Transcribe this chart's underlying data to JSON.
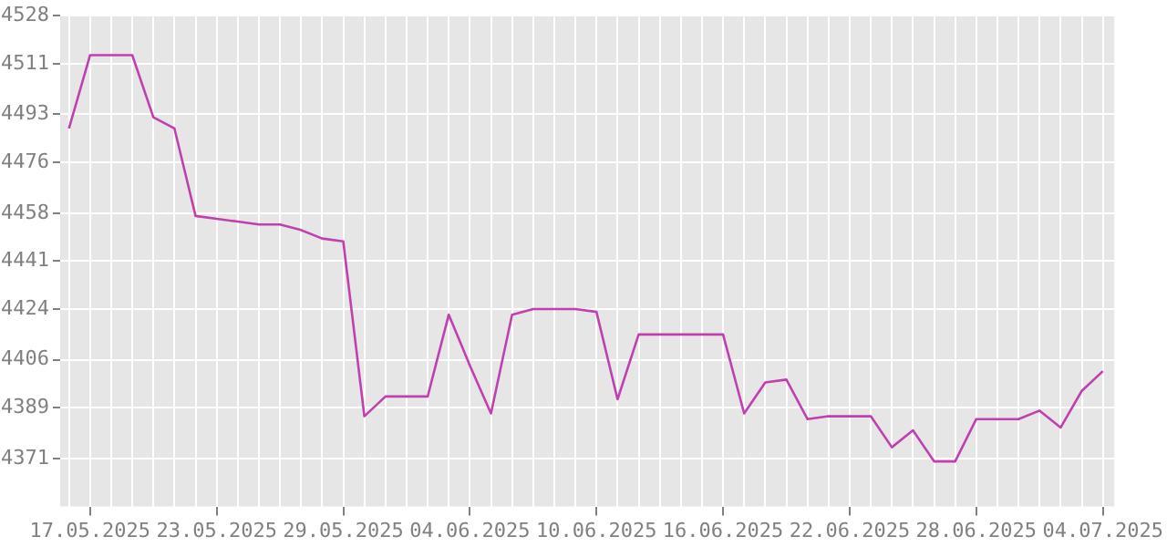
{
  "chart_data": {
    "type": "line",
    "x": [
      "2025-05-16",
      "2025-05-17",
      "2025-05-18",
      "2025-05-19",
      "2025-05-20",
      "2025-05-21",
      "2025-05-22",
      "2025-05-23",
      "2025-05-24",
      "2025-05-25",
      "2025-05-26",
      "2025-05-27",
      "2025-05-28",
      "2025-05-29",
      "2025-05-30",
      "2025-05-31",
      "2025-06-01",
      "2025-06-02",
      "2025-06-03",
      "2025-06-04",
      "2025-06-05",
      "2025-06-06",
      "2025-06-07",
      "2025-06-08",
      "2025-06-09",
      "2025-06-10",
      "2025-06-11",
      "2025-06-12",
      "2025-06-13",
      "2025-06-14",
      "2025-06-15",
      "2025-06-16",
      "2025-06-17",
      "2025-06-18",
      "2025-06-19",
      "2025-06-20",
      "2025-06-21",
      "2025-06-22",
      "2025-06-23",
      "2025-06-24",
      "2025-06-25",
      "2025-06-26",
      "2025-06-27",
      "2025-06-28",
      "2025-06-29",
      "2025-06-30",
      "2025-07-01",
      "2025-07-02",
      "2025-07-03",
      "2025-07-04"
    ],
    "series": [
      {
        "color": "#c040b0",
        "values": [
          4488,
          4514,
          4514,
          4514,
          4492,
          4488,
          4457,
          4456,
          4455,
          4454,
          4454,
          4452,
          4449,
          4448,
          4386,
          4393,
          4393,
          4393,
          4422,
          4404,
          4387,
          4422,
          4424,
          4424,
          4424,
          4423,
          4392,
          4415,
          4415,
          4415,
          4415,
          4415,
          4387,
          4398,
          4399,
          4385,
          4386,
          4386,
          4386,
          4375,
          4381,
          4370,
          4370,
          4385,
          4385,
          4385,
          4388,
          4382,
          4395,
          4402
        ]
      }
    ],
    "xlim": [
      "2025-05-15T14:00",
      "2025-07-04T13:00"
    ],
    "xticks": [
      {
        "value": "2025-05-16",
        "label": null
      },
      {
        "value": "2025-05-17",
        "label": "17.05.2025"
      },
      {
        "value": "2025-05-18",
        "label": null
      },
      {
        "value": "2025-05-19",
        "label": null
      },
      {
        "value": "2025-05-20",
        "label": null
      },
      {
        "value": "2025-05-21",
        "label": null
      },
      {
        "value": "2025-05-22",
        "label": null
      },
      {
        "value": "2025-05-23",
        "label": "23.05.2025"
      },
      {
        "value": "2025-05-24",
        "label": null
      },
      {
        "value": "2025-05-25",
        "label": null
      },
      {
        "value": "2025-05-26",
        "label": null
      },
      {
        "value": "2025-05-27",
        "label": null
      },
      {
        "value": "2025-05-28",
        "label": null
      },
      {
        "value": "2025-05-29",
        "label": "29.05.2025"
      },
      {
        "value": "2025-05-30",
        "label": null
      },
      {
        "value": "2025-05-31",
        "label": null
      },
      {
        "value": "2025-06-01",
        "label": null
      },
      {
        "value": "2025-06-02",
        "label": null
      },
      {
        "value": "2025-06-03",
        "label": null
      },
      {
        "value": "2025-06-04",
        "label": "04.06.2025"
      },
      {
        "value": "2025-06-05",
        "label": null
      },
      {
        "value": "2025-06-06",
        "label": null
      },
      {
        "value": "2025-06-07",
        "label": null
      },
      {
        "value": "2025-06-08",
        "label": null
      },
      {
        "value": "2025-06-09",
        "label": null
      },
      {
        "value": "2025-06-10",
        "label": "10.06.2025"
      },
      {
        "value": "2025-06-11",
        "label": null
      },
      {
        "value": "2025-06-12",
        "label": null
      },
      {
        "value": "2025-06-13",
        "label": null
      },
      {
        "value": "2025-06-14",
        "label": null
      },
      {
        "value": "2025-06-15",
        "label": null
      },
      {
        "value": "2025-06-16",
        "label": "16.06.2025"
      },
      {
        "value": "2025-06-17",
        "label": null
      },
      {
        "value": "2025-06-18",
        "label": null
      },
      {
        "value": "2025-06-19",
        "label": null
      },
      {
        "value": "2025-06-20",
        "label": null
      },
      {
        "value": "2025-06-21",
        "label": null
      },
      {
        "value": "2025-06-22",
        "label": "22.06.2025"
      },
      {
        "value": "2025-06-23",
        "label": null
      },
      {
        "value": "2025-06-24",
        "label": null
      },
      {
        "value": "2025-06-25",
        "label": null
      },
      {
        "value": "2025-06-26",
        "label": null
      },
      {
        "value": "2025-06-27",
        "label": null
      },
      {
        "value": "2025-06-28",
        "label": "28.06.2025"
      },
      {
        "value": "2025-06-29",
        "label": null
      },
      {
        "value": "2025-06-30",
        "label": null
      },
      {
        "value": "2025-07-01",
        "label": null
      },
      {
        "value": "2025-07-02",
        "label": null
      },
      {
        "value": "2025-07-03",
        "label": null
      },
      {
        "value": "2025-07-04",
        "label": "04.07.2025"
      }
    ],
    "ylim": [
      4354,
      4528
    ],
    "yticks": [
      4371,
      4389,
      4406,
      4424,
      4441,
      4458,
      4476,
      4493,
      4511,
      4528
    ],
    "grid": true,
    "legend": false,
    "marker": "none",
    "line_style": "solid"
  }
}
